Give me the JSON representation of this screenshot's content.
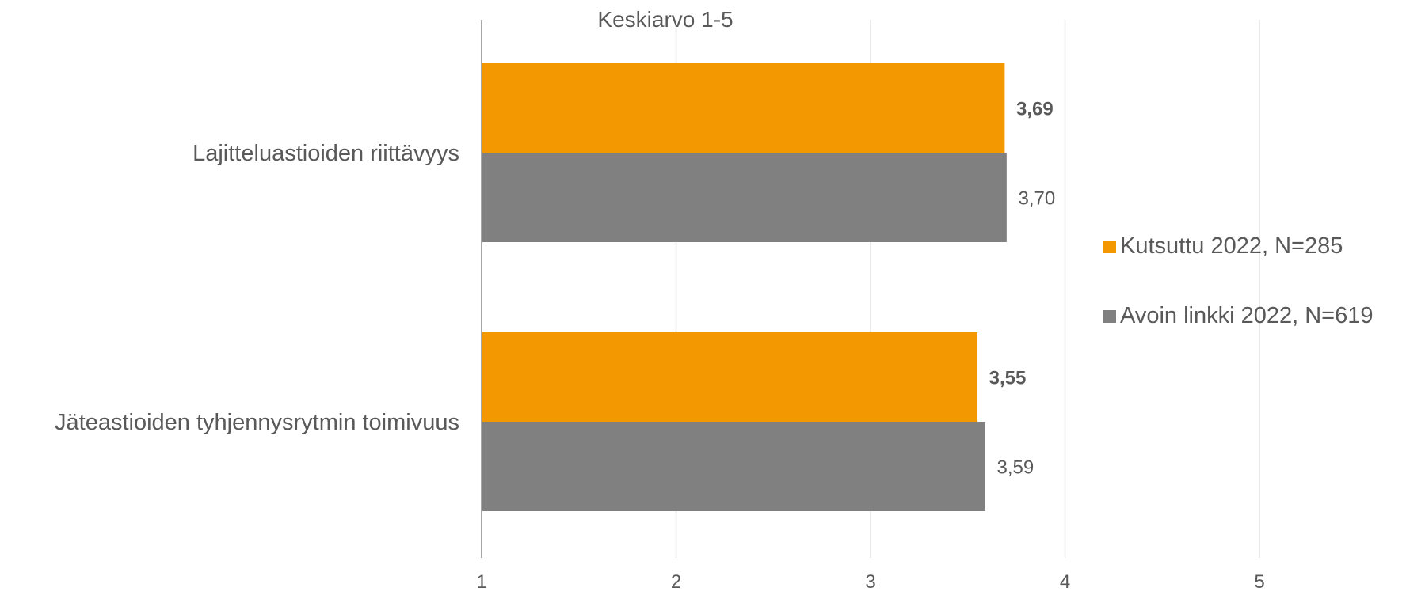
{
  "chart_data": {
    "type": "bar",
    "orientation": "horizontal",
    "title": "Keskiarvo 1-5",
    "categories": [
      "Lajitteluastioiden riittävyys",
      "Jäteastioiden tyhjennysrytmin toimivuus"
    ],
    "series": [
      {
        "name": "Kutsuttu 2022, N=285",
        "color": "#F39800",
        "values": [
          3.69,
          3.55
        ],
        "labels": [
          "3,69",
          "3,55"
        ],
        "label_bold": true
      },
      {
        "name": "Avoin linkki 2022, N=619",
        "color": "#808080",
        "values": [
          3.7,
          3.59
        ],
        "labels": [
          "3,70",
          "3,59"
        ],
        "label_bold": false
      }
    ],
    "xlim": [
      1,
      5
    ],
    "xticks": [
      "1",
      "2",
      "3",
      "4",
      "5"
    ],
    "grid": true,
    "legend_position": "right"
  }
}
